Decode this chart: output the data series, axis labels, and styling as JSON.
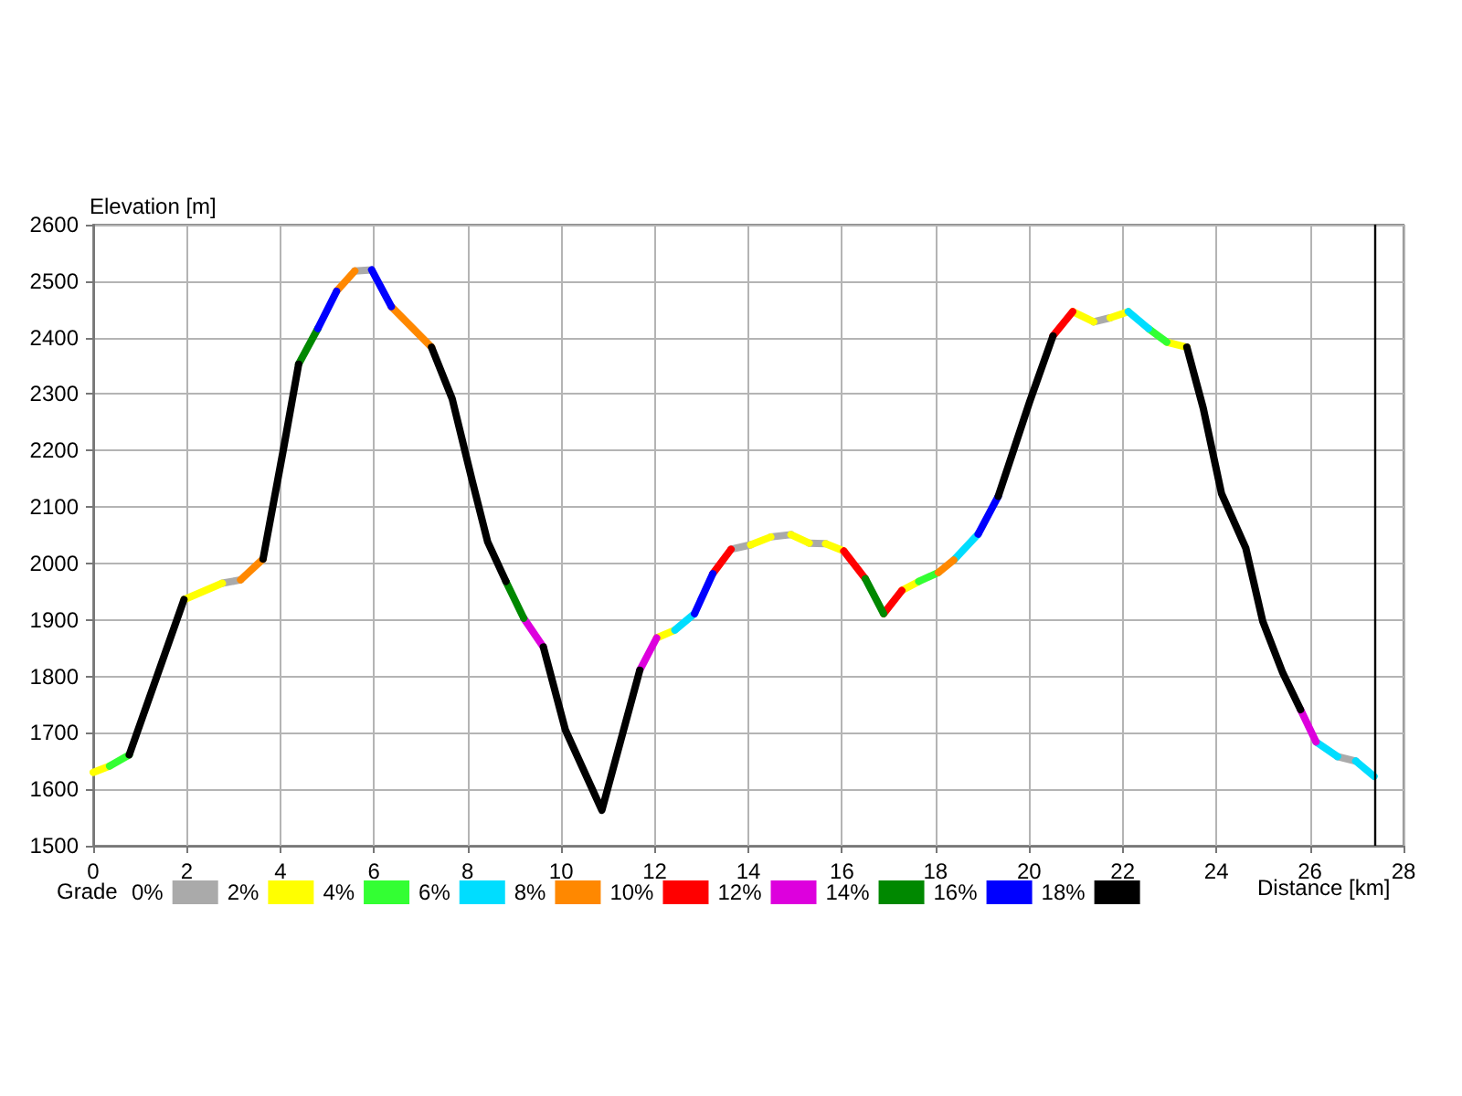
{
  "chart_data": {
    "type": "line",
    "xlabel": "Distance [km]",
    "ylabel": "Elevation [m]",
    "legend_title": "Grade",
    "legend": "bottom",
    "xlim": [
      0,
      28
    ],
    "xticks": [
      0,
      2,
      4,
      6,
      8,
      10,
      12,
      14,
      16,
      18,
      20,
      22,
      24,
      26,
      28
    ],
    "ylim": [
      1500,
      2600
    ],
    "yticks": [
      1500,
      1600,
      1700,
      1800,
      1900,
      2000,
      2100,
      2200,
      2300,
      2400,
      2500,
      2600
    ],
    "grid": true,
    "marker": "none",
    "line_style": "solid",
    "ref_lines": [
      {
        "axis": "x",
        "value": 27.4,
        "color": "#000000",
        "line_style": "solid"
      }
    ],
    "series": [
      {
        "name": "0%",
        "color": "#aaaaaa",
        "x": [
          2.76,
          3.15,
          null,
          5.59,
          5.95,
          null,
          13.63,
          14.05,
          null,
          14.48,
          14.91,
          null,
          15.3,
          15.65,
          null,
          21.38,
          21.73,
          null,
          26.59,
          26.98
        ],
        "values": [
          1965,
          1971,
          null,
          2518,
          2520,
          null,
          2025,
          2033,
          null,
          2047,
          2051,
          null,
          2036,
          2035,
          null,
          2428,
          2435,
          null,
          1658,
          1650
        ]
      },
      {
        "name": "2%",
        "color": "#ffff00",
        "x": [
          0,
          0.35,
          null,
          1.94,
          2.76,
          null,
          12.04,
          12.43,
          null,
          14.05,
          14.48,
          null,
          14.91,
          15.3,
          null,
          15.65,
          16.04,
          null,
          17.28,
          17.64,
          null,
          20.93,
          21.38,
          null,
          21.73,
          22.12,
          null,
          22.94,
          23.37
        ],
        "values": [
          1630,
          1641,
          null,
          1936,
          1965,
          null,
          1868,
          1882,
          null,
          2033,
          2047,
          null,
          2051,
          2036,
          null,
          2035,
          2022,
          null,
          1952,
          1968,
          null,
          2446,
          2428,
          null,
          2435,
          2446,
          null,
          2392,
          2383
        ]
      },
      {
        "name": "4%",
        "color": "#33ff33",
        "x": [
          0.35,
          0.77,
          null,
          17.64,
          18.06,
          null,
          22.55,
          22.94
        ],
        "values": [
          1641,
          1661,
          null,
          1968,
          1984,
          null,
          2416,
          2392
        ]
      },
      {
        "name": "6%",
        "color": "#00ddff",
        "x": [
          12.43,
          12.85,
          null,
          18.39,
          18.91,
          null,
          22.12,
          22.55,
          null,
          26.13,
          26.59,
          null,
          26.98,
          27.37
        ],
        "values": [
          1882,
          1911,
          null,
          2006,
          2052,
          null,
          2446,
          2416,
          null,
          1684,
          1658,
          null,
          1650,
          1623
        ]
      },
      {
        "name": "8%",
        "color": "#ff8800",
        "x": [
          3.15,
          3.63,
          null,
          5.2,
          5.59,
          null,
          6.37,
          7.23,
          null,
          18.06,
          18.39
        ],
        "values": [
          1971,
          2008,
          null,
          2482,
          2518,
          null,
          2455,
          2383,
          null,
          1984,
          2006
        ]
      },
      {
        "name": "10%",
        "color": "#ff0000",
        "x": [
          13.24,
          13.63,
          null,
          16.04,
          16.5,
          null,
          16.89,
          17.28,
          null,
          20.51,
          20.93
        ],
        "values": [
          1982,
          2025,
          null,
          2022,
          1973,
          null,
          1911,
          1952,
          null,
          2403,
          2446
        ]
      },
      {
        "name": "12%",
        "color": "#dd00dd",
        "x": [
          9.2,
          9.62,
          null,
          11.68,
          12.04,
          null,
          25.8,
          26.13
        ],
        "values": [
          1903,
          1852,
          null,
          1811,
          1868,
          null,
          1741,
          1684
        ]
      },
      {
        "name": "14%",
        "color": "#008800",
        "x": [
          4.39,
          4.8,
          null,
          8.82,
          9.2,
          null,
          16.5,
          16.89
        ],
        "values": [
          2353,
          2416,
          null,
          1968,
          1903,
          null,
          1973,
          1911
        ]
      },
      {
        "name": "16%",
        "color": "#0000ff",
        "x": [
          4.8,
          5.2,
          null,
          5.95,
          6.37,
          null,
          12.85,
          13.24,
          null,
          18.91,
          19.34
        ],
        "values": [
          2416,
          2482,
          null,
          2520,
          2455,
          null,
          1911,
          1982,
          null,
          2052,
          2119
        ]
      },
      {
        "name": "18%",
        "color": "#000000",
        "x": [
          0.77,
          1.94,
          null,
          3.63,
          4.06,
          4.39,
          null,
          7.23,
          7.67,
          8.1,
          8.43,
          8.82,
          null,
          9.62,
          10.09,
          10.87,
          11.68,
          null,
          19.34,
          20.01,
          20.51,
          null,
          23.37,
          23.72,
          24.11,
          24.63,
          24.99,
          25.42,
          25.8
        ],
        "values": [
          1661,
          1936,
          null,
          2008,
          2200,
          2353,
          null,
          2383,
          2292,
          2146,
          2038,
          1968,
          null,
          1852,
          1705,
          1563,
          1811,
          null,
          2119,
          2286,
          2403,
          null,
          2383,
          2275,
          2124,
          2027,
          1898,
          1806,
          1741
        ]
      }
    ]
  }
}
